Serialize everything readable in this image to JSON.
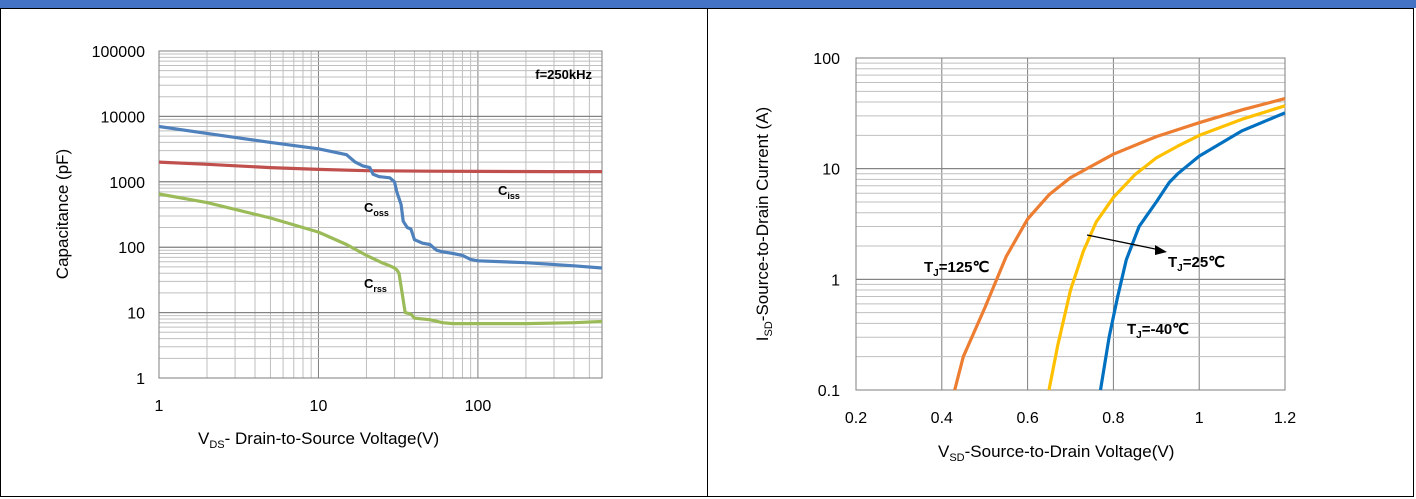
{
  "chart_data": [
    {
      "type": "line",
      "xscale": "log",
      "yscale": "log",
      "xlim": [
        1,
        600
      ],
      "ylim": [
        1,
        100000
      ],
      "grid": true,
      "x_ticks": [
        "1",
        "10",
        "100"
      ],
      "y_ticks": [
        "1",
        "10",
        "100",
        "1000",
        "10000",
        "100000"
      ],
      "xlabel": {
        "main": "V",
        "sub": "DS",
        "rest": "- Drain-to-Source Voltage(V)"
      },
      "ylabel": "Capacitance (pF)",
      "annotations": {
        "freq": "f=250kHz",
        "ciss": {
          "main": "C",
          "sub": "iss"
        },
        "coss": {
          "main": "C",
          "sub": "oss"
        },
        "crss": {
          "main": "C",
          "sub": "rss"
        }
      },
      "series": [
        {
          "color": "#c0504d",
          "x": [
            1,
            2,
            5,
            10,
            20,
            50,
            100,
            300,
            600
          ],
          "y": [
            2000,
            1850,
            1650,
            1550,
            1480,
            1450,
            1440,
            1430,
            1430
          ]
        },
        {
          "color": "#4f81bd",
          "x": [
            1,
            2,
            5,
            10,
            15,
            17,
            19,
            21,
            22,
            24,
            28,
            30,
            31,
            33,
            34,
            36,
            38,
            40,
            45,
            50,
            55,
            60,
            70,
            80,
            90,
            100,
            200,
            400,
            600
          ],
          "y": [
            7000,
            5500,
            4000,
            3200,
            2600,
            2000,
            1750,
            1650,
            1300,
            1200,
            1150,
            1000,
            700,
            450,
            250,
            200,
            190,
            130,
            115,
            110,
            90,
            85,
            80,
            75,
            65,
            62,
            58,
            52,
            48
          ]
        },
        {
          "color": "#9bbb59",
          "x": [
            1,
            2,
            5,
            10,
            15,
            20,
            25,
            28,
            30,
            31,
            32,
            33,
            35,
            38,
            40,
            50,
            60,
            70,
            100,
            200,
            400,
            600
          ],
          "y": [
            650,
            480,
            280,
            170,
            110,
            75,
            58,
            52,
            48,
            45,
            40,
            25,
            10,
            9.5,
            8.2,
            7.8,
            7,
            6.8,
            6.8,
            6.8,
            7,
            7.3
          ]
        }
      ]
    },
    {
      "type": "line",
      "xscale": "linear",
      "yscale": "log",
      "xlim": [
        0.2,
        1.2
      ],
      "ylim": [
        0.1,
        100
      ],
      "grid": true,
      "x_ticks": [
        "0.2",
        "0.4",
        "0.6",
        "0.8",
        "1",
        "1.2"
      ],
      "y_ticks": [
        "0.1",
        "1",
        "10",
        "100"
      ],
      "xlabel": {
        "main": "V",
        "sub": "SD",
        "rest": "-Source-to-Drain Voltage(V)"
      },
      "ylabel": {
        "main": "I",
        "sub": "SD",
        "rest": "-Source-to-Drain Current (A)"
      },
      "annotations": {
        "t125": {
          "main": "T",
          "sub": "J",
          "rest": "=125℃"
        },
        "t25": {
          "main": "T",
          "sub": "J",
          "rest": "=25℃"
        },
        "tm40": {
          "main": "T",
          "sub": "J",
          "rest": "=-40℃"
        }
      },
      "series": [
        {
          "color": "#ed7d31",
          "x": [
            0.43,
            0.45,
            0.5,
            0.55,
            0.6,
            0.65,
            0.7,
            0.8,
            0.9,
            1.0,
            1.1,
            1.2
          ],
          "y": [
            0.1,
            0.2,
            0.55,
            1.6,
            3.5,
            5.8,
            8.3,
            13.5,
            19.5,
            26,
            34,
            43
          ]
        },
        {
          "color": "#ffc000",
          "x": [
            0.65,
            0.67,
            0.7,
            0.73,
            0.76,
            0.8,
            0.85,
            0.9,
            0.95,
            1.0,
            1.1,
            1.2
          ],
          "y": [
            0.1,
            0.25,
            0.8,
            1.8,
            3.3,
            5.5,
            8.8,
            12.5,
            16,
            20,
            28,
            37
          ]
        },
        {
          "color": "#0070c0",
          "x": [
            0.77,
            0.79,
            0.81,
            0.83,
            0.86,
            0.9,
            0.93,
            0.95,
            1.0,
            1.1,
            1.2
          ],
          "y": [
            0.1,
            0.3,
            0.7,
            1.5,
            3.0,
            5.0,
            7.5,
            9.0,
            13,
            22,
            32
          ]
        }
      ]
    }
  ]
}
